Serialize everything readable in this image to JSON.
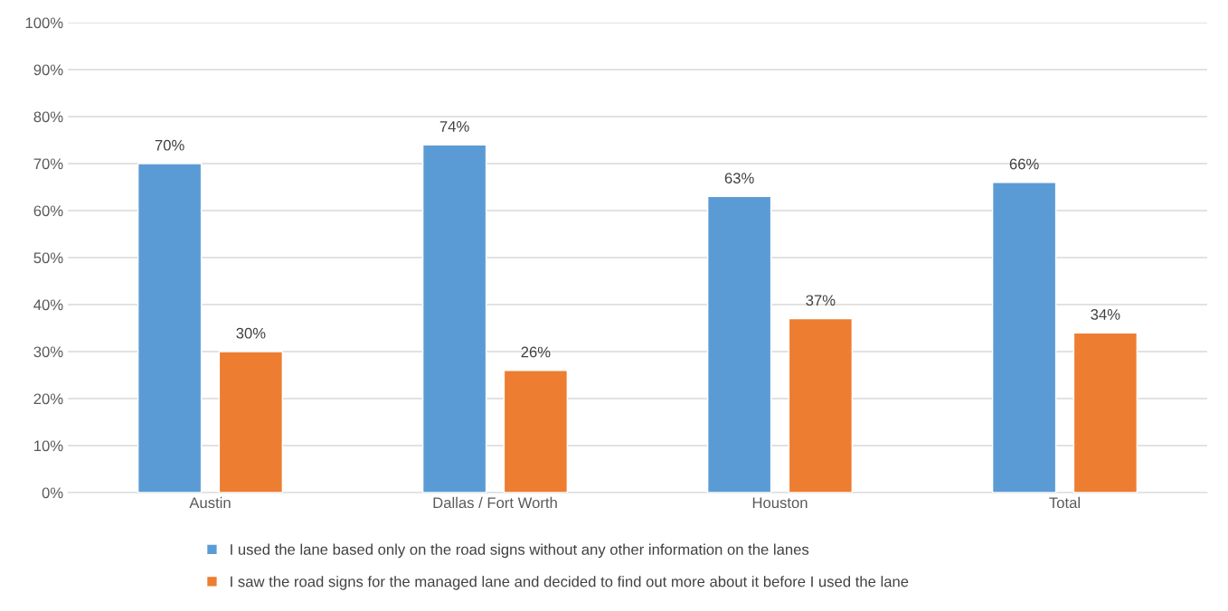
{
  "chart_data": {
    "type": "bar",
    "categories": [
      "Austin",
      "Dallas / Fort Worth",
      "Houston",
      "Total"
    ],
    "series": [
      {
        "name": "I used the lane based only on the road signs without any other information on the lanes",
        "color": "#5b9bd5",
        "values": [
          70,
          74,
          63,
          66
        ],
        "value_labels": [
          "70%",
          "74%",
          "63%",
          "66%"
        ]
      },
      {
        "name": "I saw the road signs for the managed lane and decided to find out more about it before I used the lane",
        "color": "#ed7d31",
        "values": [
          30,
          26,
          37,
          34
        ],
        "value_labels": [
          "30%",
          "26%",
          "37%",
          "34%"
        ]
      }
    ],
    "ylim": [
      0,
      100
    ],
    "yticks": [
      {
        "value": 0,
        "label": "0%"
      },
      {
        "value": 10,
        "label": "10%"
      },
      {
        "value": 20,
        "label": "20%"
      },
      {
        "value": 30,
        "label": "30%"
      },
      {
        "value": 40,
        "label": "40%"
      },
      {
        "value": 50,
        "label": "50%"
      },
      {
        "value": 60,
        "label": "60%"
      },
      {
        "value": 70,
        "label": "70%"
      },
      {
        "value": 80,
        "label": "80%"
      },
      {
        "value": 90,
        "label": "90%"
      },
      {
        "value": 100,
        "label": "100%"
      }
    ],
    "grid": "y",
    "legend": "bottom"
  }
}
